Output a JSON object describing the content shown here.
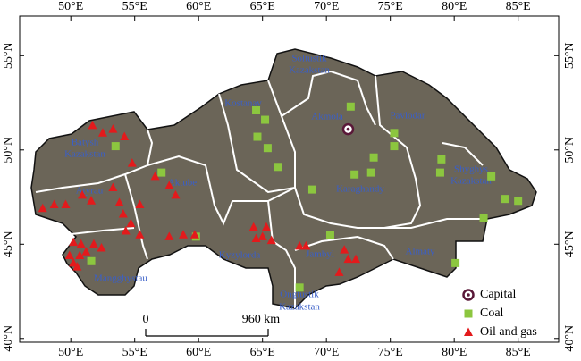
{
  "chart_data": {
    "type": "map",
    "xlim": [
      46,
      88.17
    ],
    "ylim": [
      39.8,
      57.1
    ],
    "xticks": [
      {
        "value": 50,
        "label": "50°E"
      },
      {
        "value": 55,
        "label": "55°E"
      },
      {
        "value": 60,
        "label": "60°E"
      },
      {
        "value": 65,
        "label": "65°E"
      },
      {
        "value": 70,
        "label": "70°E"
      },
      {
        "value": 75,
        "label": "75°E"
      },
      {
        "value": 80,
        "label": "80°E"
      },
      {
        "value": 85,
        "label": "85°E"
      }
    ],
    "yticks": [
      {
        "value": 40,
        "label": "40°N"
      },
      {
        "value": 45,
        "label": "45°N"
      },
      {
        "value": 50,
        "label": "50°N"
      },
      {
        "value": 55,
        "label": "55°N"
      }
    ],
    "regions": [
      "Batysh",
      "Kazakstan",
      "Atyrau",
      "Aktube",
      "Mangghystau",
      "Kyzylorda",
      "Ongtustik",
      "Kazakstan",
      "Jambyl",
      "Almaty",
      "Shyghys",
      "Kazakstan",
      "Karaghandy",
      "Pavlodar",
      "Akmola",
      "Kostanay",
      "Soltustik",
      "Kazakstan"
    ],
    "scale_bar": [
      "0",
      "960 km"
    ],
    "series": [
      {
        "name": "Capital",
        "color": "#5a1838",
        "marker": "circle",
        "x": [
          71.7
        ],
        "y": [
          51.1
        ]
      },
      {
        "name": "Coal",
        "color": "#8cc63f",
        "marker": "square",
        "x": [
          53.5,
          57.1,
          64.5,
          65.2,
          64.6,
          65.4,
          66.2,
          71.9,
          68.9,
          72.2,
          73.5,
          73.7,
          75.3,
          75.3,
          79.0,
          78.9,
          82.9,
          84.0,
          85.0,
          82.3,
          51.6,
          59.8,
          70.3,
          67.9,
          80.1
        ],
        "y": [
          50.2,
          48.8,
          52.1,
          51.6,
          50.7,
          50.1,
          49.1,
          52.3,
          47.9,
          48.7,
          48.8,
          49.6,
          50.9,
          50.2,
          49.5,
          48.8,
          48.6,
          47.4,
          47.3,
          46.4,
          44.1,
          45.4,
          45.5,
          42.7,
          44.0
        ]
      },
      {
        "name": "Oil and gas",
        "color": "#e31a1c",
        "marker": "triangle",
        "x": [
          51.7,
          52.5,
          53.3,
          54.2,
          54.8,
          56.6,
          57.7,
          58.2,
          47.8,
          48.7,
          49.6,
          50.9,
          51.6,
          53.3,
          53.8,
          54.1,
          54.7,
          55.4,
          55.4,
          54.3,
          57.7,
          58.8,
          59.7,
          64.3,
          65.3,
          65.0,
          65.7,
          64.5,
          67.9,
          68.4,
          71.4,
          71.7,
          71.0,
          72.3,
          50.2,
          50.8,
          51.8,
          52.4,
          49.9,
          50.2,
          50.5,
          50.7,
          51.2
        ],
        "y": [
          51.3,
          50.9,
          51.1,
          50.7,
          49.3,
          48.6,
          48.1,
          47.6,
          46.9,
          47.1,
          47.1,
          47.6,
          47.3,
          48.0,
          47.2,
          46.6,
          46.1,
          47.1,
          45.5,
          45.7,
          45.4,
          45.5,
          45.5,
          45.9,
          45.9,
          45.4,
          45.2,
          45.3,
          44.9,
          44.9,
          44.7,
          44.2,
          43.5,
          44.2,
          45.1,
          45.0,
          45.0,
          44.8,
          44.4,
          44.0,
          43.8,
          44.4,
          44.6
        ]
      }
    ]
  }
}
